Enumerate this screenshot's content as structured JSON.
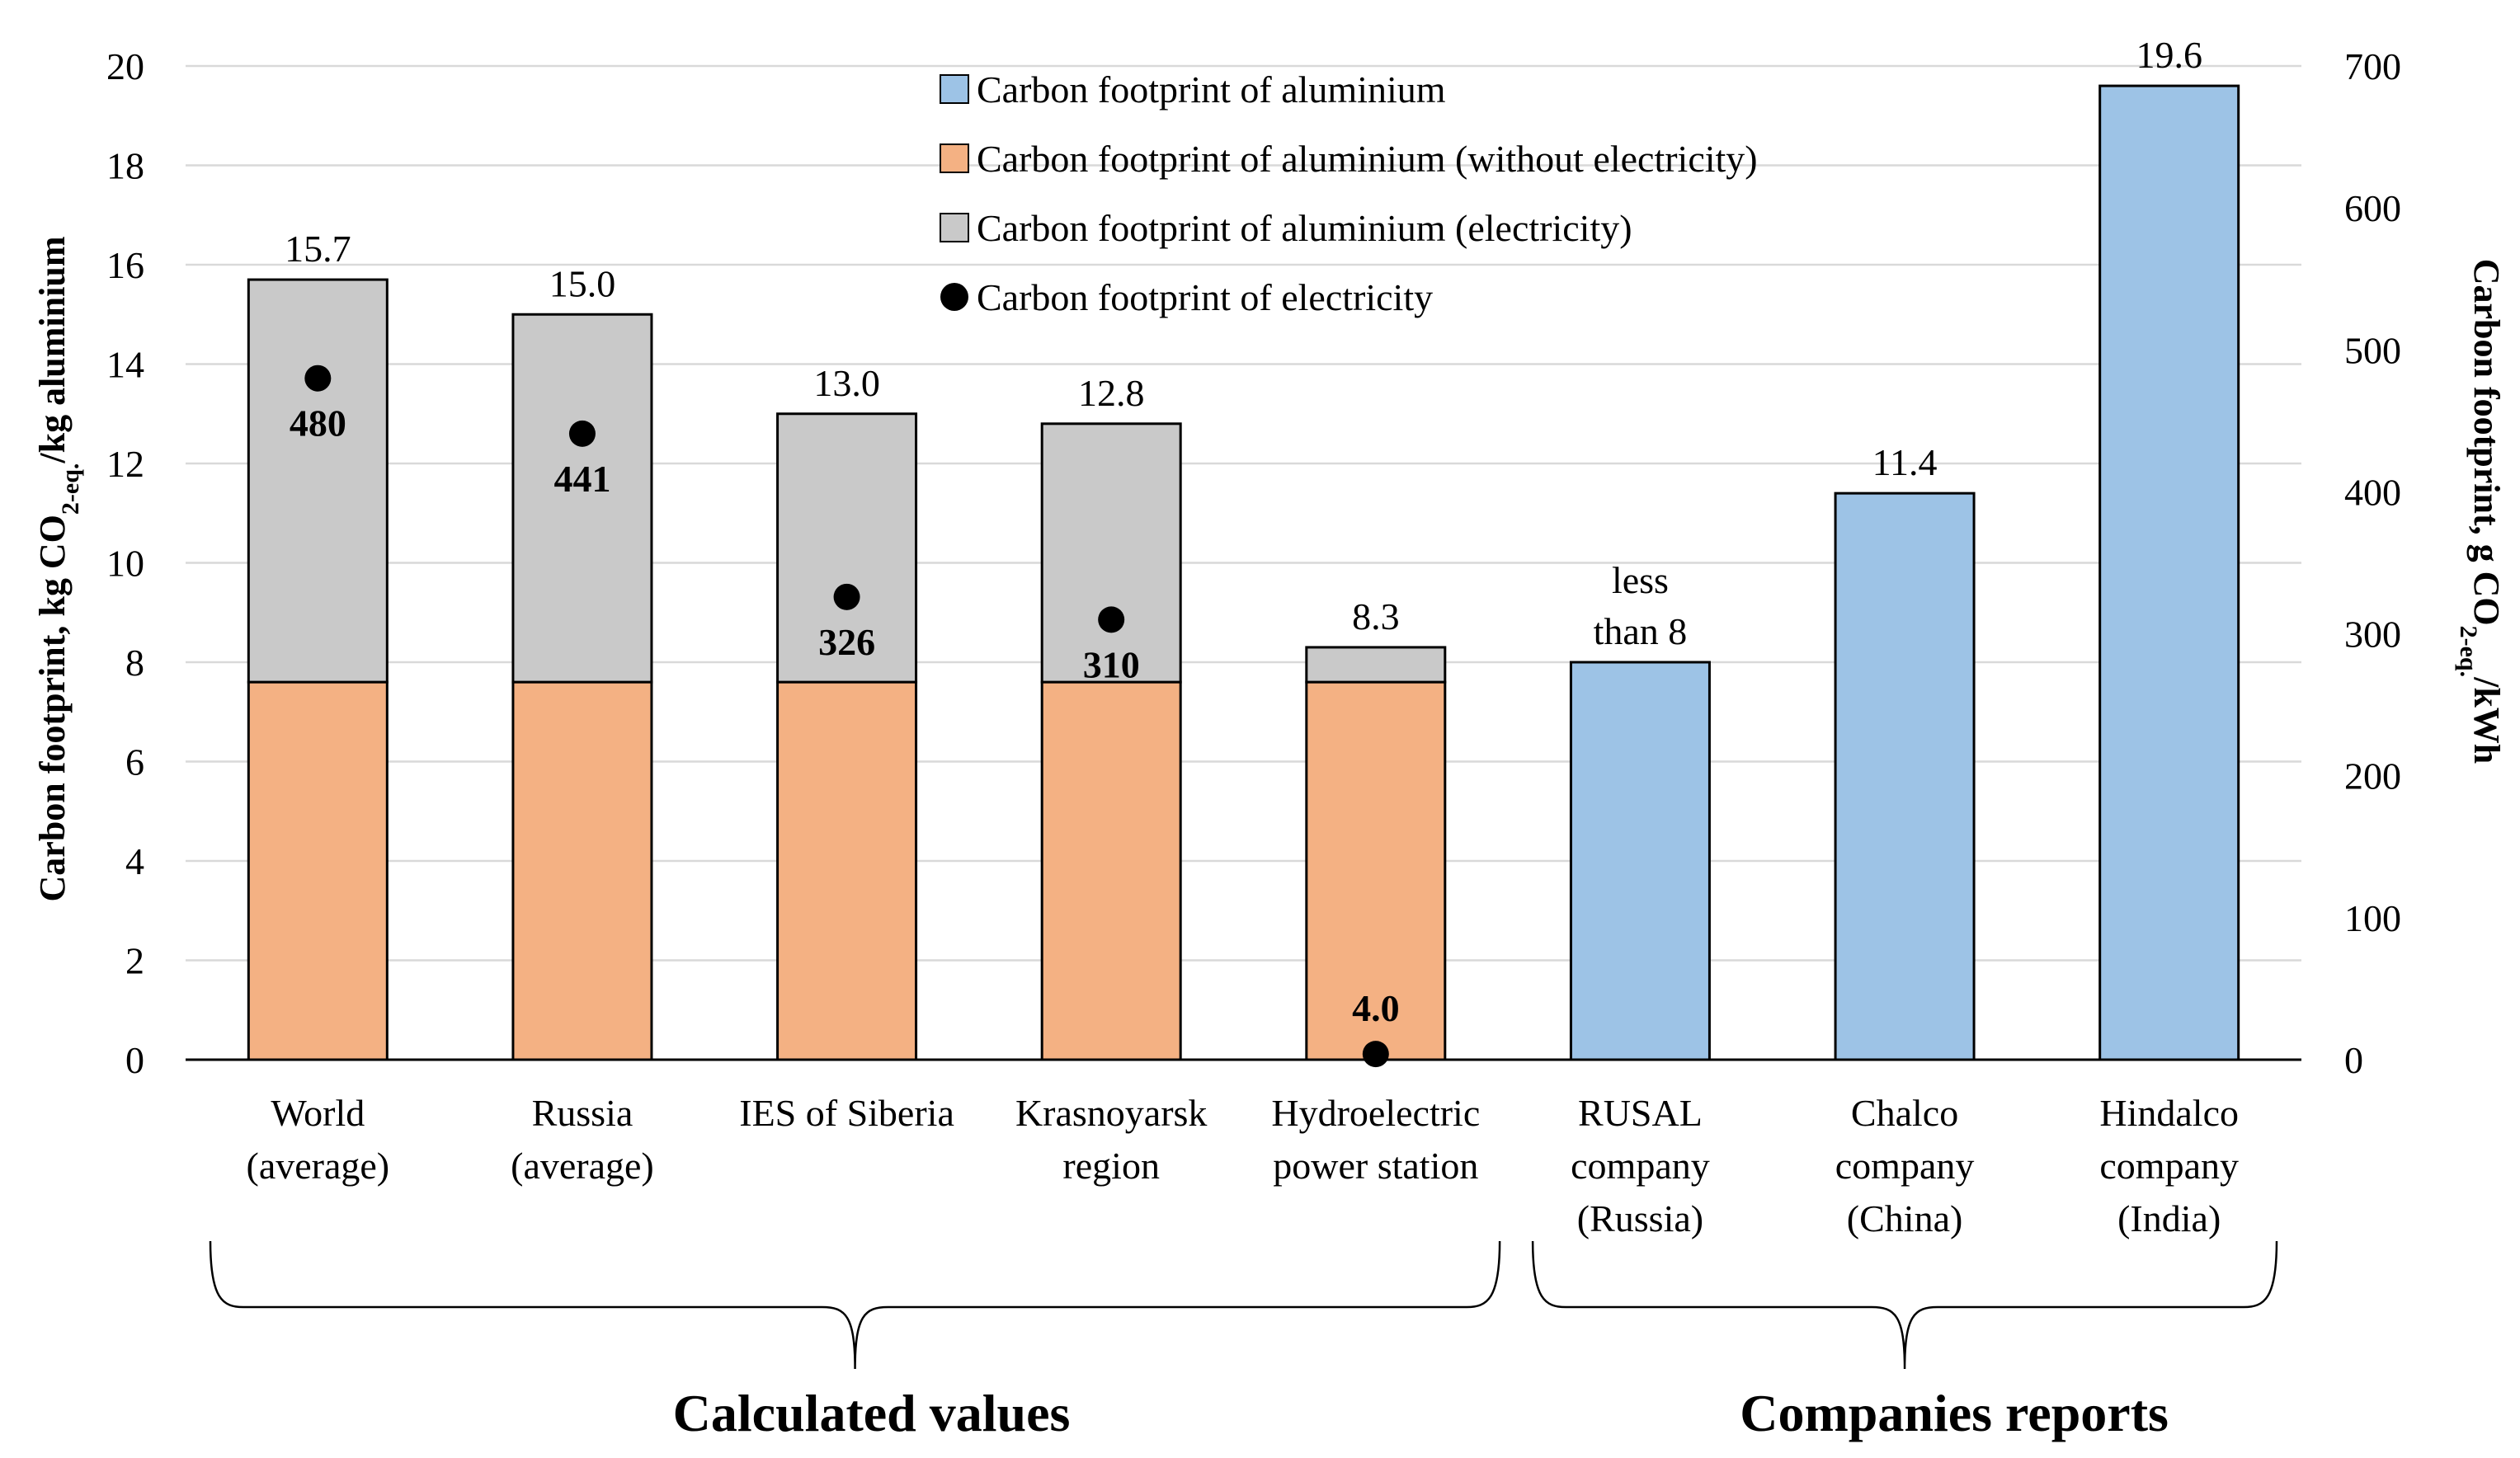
{
  "chart_data": {
    "type": "bar",
    "subtype": "stacked-bar-with-secondary-markers",
    "categories": [
      [
        "World",
        "(average)"
      ],
      [
        "Russia",
        "(average)"
      ],
      [
        "IES of Siberia"
      ],
      [
        "Krasnoyarsk",
        "region"
      ],
      [
        "Hydroelectric",
        "power station"
      ],
      [
        "RUSAL",
        "company",
        "(Russia)"
      ],
      [
        "Chalco",
        "company",
        "(China)"
      ],
      [
        "Hindalco",
        "company",
        "(India)"
      ]
    ],
    "series": [
      {
        "name": "Carbon footprint of aluminium (without electricity)",
        "color": "#f4b183",
        "values": [
          7.6,
          7.6,
          7.6,
          7.6,
          7.6,
          null,
          null,
          null
        ]
      },
      {
        "name": "Carbon footprint of aluminium (electricity)",
        "color": "#c9c9c9",
        "values": [
          8.1,
          7.4,
          5.4,
          5.2,
          0.7,
          null,
          null,
          null
        ]
      },
      {
        "name": "Carbon footprint of aluminium",
        "color": "#9dc3e6",
        "values": [
          null,
          null,
          null,
          null,
          null,
          8.0,
          11.4,
          19.6
        ]
      }
    ],
    "totals_labels": [
      "15.7",
      "15.0",
      "13.0",
      "12.8",
      "8.3",
      [
        "less",
        "than 8"
      ],
      "11.4",
      "19.6"
    ],
    "totals_values": [
      15.7,
      15.0,
      13.0,
      12.8,
      8.3,
      8.0,
      11.4,
      19.6
    ],
    "electricity_series": {
      "name": "Carbon footprint of electricity",
      "axis": "right",
      "values": [
        480,
        441,
        326,
        310,
        4.0
      ],
      "labels": [
        "480",
        "441",
        "326",
        "310",
        "4.0"
      ]
    },
    "legend": [
      {
        "label": "Carbon footprint of aluminium",
        "marker": "square",
        "color": "#9dc3e6"
      },
      {
        "label": "Carbon footprint of aluminium (without electricity)",
        "marker": "square",
        "color": "#f4b183"
      },
      {
        "label": "Carbon footprint of aluminium (electricity)",
        "marker": "square",
        "color": "#c9c9c9"
      },
      {
        "label": "Carbon footprint of electricity",
        "marker": "circle",
        "color": "#000000"
      }
    ],
    "legend_position": "top-center",
    "ylabel_left": [
      "Carbon footprint, kg CO",
      "2-eq.",
      "/kg aluminium"
    ],
    "ylabel_right": [
      "Carbon footprint, g CO",
      "2-eq.",
      "/kWh"
    ],
    "ylim_left": [
      0,
      20
    ],
    "yticks_left": [
      0,
      2,
      4,
      6,
      8,
      10,
      12,
      14,
      16,
      18,
      20
    ],
    "ylim_right": [
      0,
      700
    ],
    "yticks_right": [
      0,
      100,
      200,
      300,
      400,
      500,
      600,
      700
    ],
    "grid": true,
    "groups": [
      {
        "label": "Calculated values",
        "from": 0,
        "to": 4
      },
      {
        "label": "Companies reports",
        "from": 5,
        "to": 7
      }
    ]
  }
}
